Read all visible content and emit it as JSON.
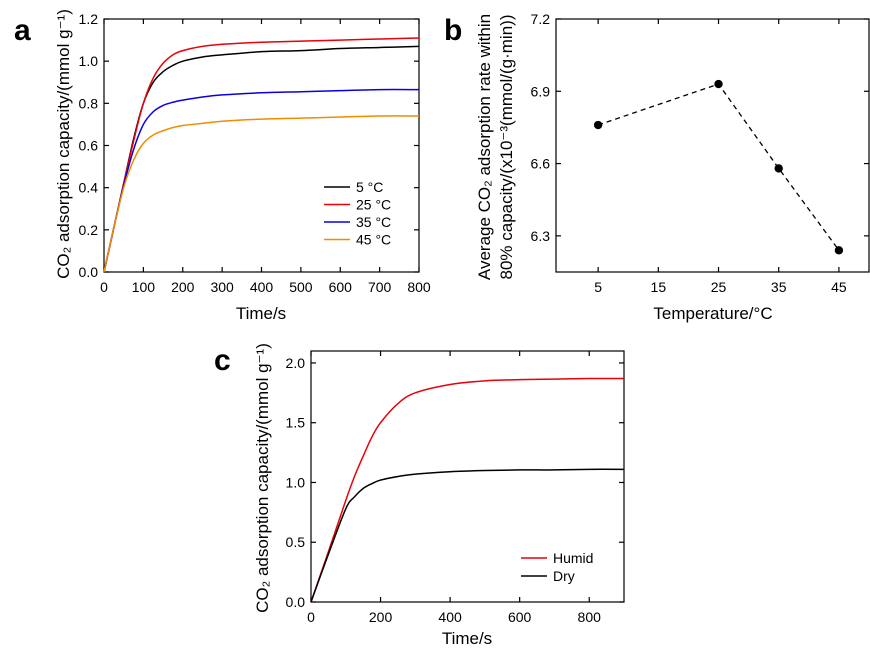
{
  "chart_data": [
    {
      "panel": "a",
      "type": "line",
      "xlabel": "Time/s",
      "ylabel": "CO₂ adsorption capacity/(mmol g⁻¹)",
      "xlim": [
        0,
        800
      ],
      "ylim": [
        0,
        1.2
      ],
      "xticks": [
        0,
        100,
        200,
        300,
        400,
        500,
        600,
        700,
        800
      ],
      "yticks": [
        0.0,
        0.2,
        0.4,
        0.6,
        0.8,
        1.0,
        1.2
      ],
      "xtick_labels": [
        "0",
        "100",
        "200",
        "300",
        "400",
        "500",
        "600",
        "700",
        "800"
      ],
      "ytick_labels": [
        "0.0",
        "0.2",
        "0.4",
        "0.6",
        "0.8",
        "1.0",
        "1.2"
      ],
      "legend_position": "bottom-right",
      "grid": false,
      "x": [
        0,
        25,
        50,
        75,
        100,
        125,
        150,
        175,
        200,
        250,
        300,
        400,
        500,
        600,
        700,
        800
      ],
      "series": [
        {
          "name": "5 °C",
          "color": "#000000",
          "values": [
            0,
            0.21,
            0.42,
            0.63,
            0.8,
            0.9,
            0.95,
            0.98,
            1.0,
            1.02,
            1.03,
            1.045,
            1.05,
            1.06,
            1.065,
            1.07
          ]
        },
        {
          "name": "25 °C",
          "color": "#e8000b",
          "values": [
            0,
            0.21,
            0.42,
            0.62,
            0.8,
            0.92,
            0.99,
            1.03,
            1.05,
            1.07,
            1.08,
            1.09,
            1.095,
            1.1,
            1.105,
            1.11
          ]
        },
        {
          "name": "35 °C",
          "color": "#0a00e0",
          "values": [
            0,
            0.21,
            0.41,
            0.58,
            0.7,
            0.76,
            0.79,
            0.805,
            0.815,
            0.83,
            0.84,
            0.85,
            0.855,
            0.86,
            0.865,
            0.865
          ]
        },
        {
          "name": "45 °C",
          "color": "#f08c00",
          "values": [
            0,
            0.21,
            0.4,
            0.53,
            0.61,
            0.65,
            0.67,
            0.685,
            0.695,
            0.705,
            0.715,
            0.725,
            0.73,
            0.735,
            0.74,
            0.74
          ]
        }
      ]
    },
    {
      "panel": "b",
      "type": "scatter",
      "xlabel": "Temperature/°C",
      "ylabel_line1": "Average CO₂ adsorption rate within",
      "ylabel_line2": "80% capacity/(x10⁻³(mmol/(g·min))",
      "xlim": [
        -2,
        50
      ],
      "ylim": [
        6.15,
        7.2
      ],
      "xticks": [
        5,
        15,
        25,
        35,
        45
      ],
      "yticks": [
        6.3,
        6.6,
        6.9,
        7.2
      ],
      "xtick_labels": [
        "5",
        "15",
        "25",
        "35",
        "45"
      ],
      "ytick_labels": [
        "6.3",
        "6.6",
        "6.9",
        "7.2"
      ],
      "line_style": "dashed",
      "grid": false,
      "x": [
        5,
        25,
        35,
        45
      ],
      "y": [
        6.76,
        6.93,
        6.58,
        6.24
      ]
    },
    {
      "panel": "c",
      "type": "line",
      "xlabel": "Time/s",
      "ylabel": "CO₂ adsorption capacity/(mmol g⁻¹)",
      "xlim": [
        0,
        900
      ],
      "ylim": [
        0,
        2.1
      ],
      "xticks": [
        0,
        200,
        400,
        600,
        800
      ],
      "yticks": [
        0.0,
        0.5,
        1.0,
        1.5,
        2.0
      ],
      "xtick_labels": [
        "0",
        "200",
        "400",
        "600",
        "800"
      ],
      "ytick_labels": [
        "0.0",
        "0.5",
        "1.0",
        "1.5",
        "2.0"
      ],
      "legend_position": "bottom-right",
      "grid": false,
      "x": [
        0,
        50,
        100,
        125,
        150,
        175,
        200,
        250,
        300,
        400,
        500,
        600,
        700,
        800,
        900
      ],
      "series": [
        {
          "name": "Humid",
          "color": "#e8000b",
          "values": [
            0,
            0.42,
            0.85,
            1.05,
            1.22,
            1.38,
            1.5,
            1.66,
            1.75,
            1.82,
            1.85,
            1.86,
            1.865,
            1.87,
            1.87
          ]
        },
        {
          "name": "Dry",
          "color": "#000000",
          "values": [
            0,
            0.4,
            0.78,
            0.88,
            0.95,
            0.99,
            1.02,
            1.05,
            1.07,
            1.09,
            1.1,
            1.105,
            1.105,
            1.11,
            1.11
          ]
        }
      ]
    }
  ]
}
